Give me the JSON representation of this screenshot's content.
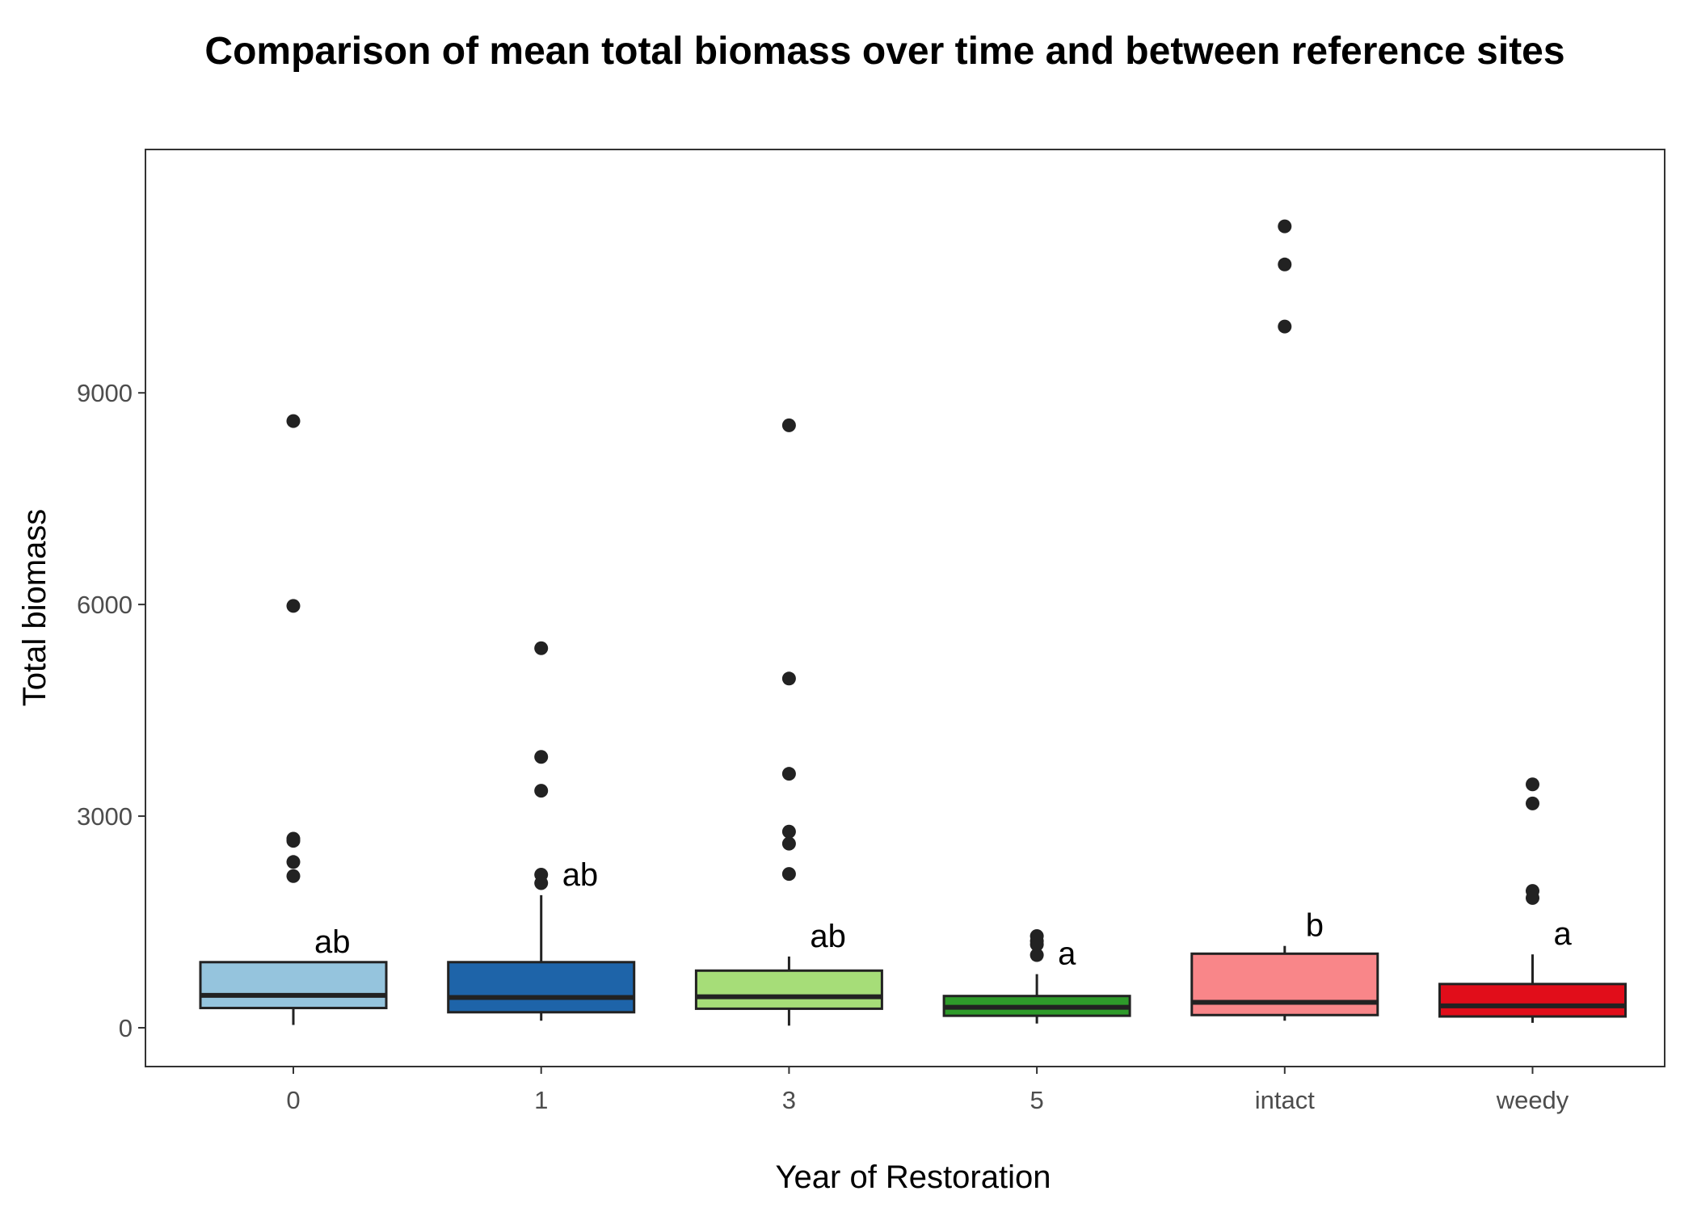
{
  "chart_data": {
    "type": "boxplot",
    "title": "Comparison of mean total biomass over time and between reference sites",
    "xlabel": "Year of Restoration",
    "ylabel": "Total biomass",
    "ylim": [
      -550,
      12450
    ],
    "yticks": [
      0,
      3000,
      6000,
      9000
    ],
    "ytick_labels": [
      "0",
      "3000",
      "6000",
      "9000"
    ],
    "grid": false,
    "categories": [
      "0",
      "1",
      "3",
      "5",
      "intact",
      "weedy"
    ],
    "boxes": [
      {
        "category": "0",
        "color": "#95c4dd",
        "median_color": "#222222",
        "q1": 280,
        "median": 460,
        "q3": 930,
        "whisker_low": 40,
        "whisker_high": 930,
        "outliers": [
          8600,
          5980,
          2680,
          2650,
          2350,
          2150
        ],
        "letter": "ab"
      },
      {
        "category": "1",
        "color": "#1e64a9",
        "median_color": "#222222",
        "q1": 220,
        "median": 430,
        "q3": 930,
        "whisker_low": 100,
        "whisker_high": 1880,
        "outliers": [
          5380,
          3840,
          3360,
          2170,
          2050
        ],
        "letter": "ab"
      },
      {
        "category": "3",
        "color": "#a6dd78",
        "median_color": "#222222",
        "q1": 270,
        "median": 440,
        "q3": 810,
        "whisker_low": 30,
        "whisker_high": 1010,
        "outliers": [
          8540,
          4950,
          3600,
          2780,
          2610,
          2180
        ],
        "letter": "ab"
      },
      {
        "category": "5",
        "color": "#2e9b2a",
        "median_color": "#222222",
        "q1": 170,
        "median": 290,
        "q3": 450,
        "whisker_low": 60,
        "whisker_high": 760,
        "outliers": [
          1300,
          1230,
          1180,
          1030
        ],
        "letter": "a"
      },
      {
        "category": "intact",
        "color": "#f98689",
        "median_color": "#222222",
        "q1": 180,
        "median": 360,
        "q3": 1050,
        "whisker_low": 100,
        "whisker_high": 1160,
        "outliers": [
          11360,
          10820,
          9940
        ],
        "letter": "b"
      },
      {
        "category": "weedy",
        "color": "#e10d1a",
        "median_color": "#222222",
        "q1": 160,
        "median": 310,
        "q3": 620,
        "whisker_low": 70,
        "whisker_high": 1040,
        "outliers": [
          3450,
          3180,
          1940,
          1840
        ],
        "letter": "a"
      }
    ]
  }
}
